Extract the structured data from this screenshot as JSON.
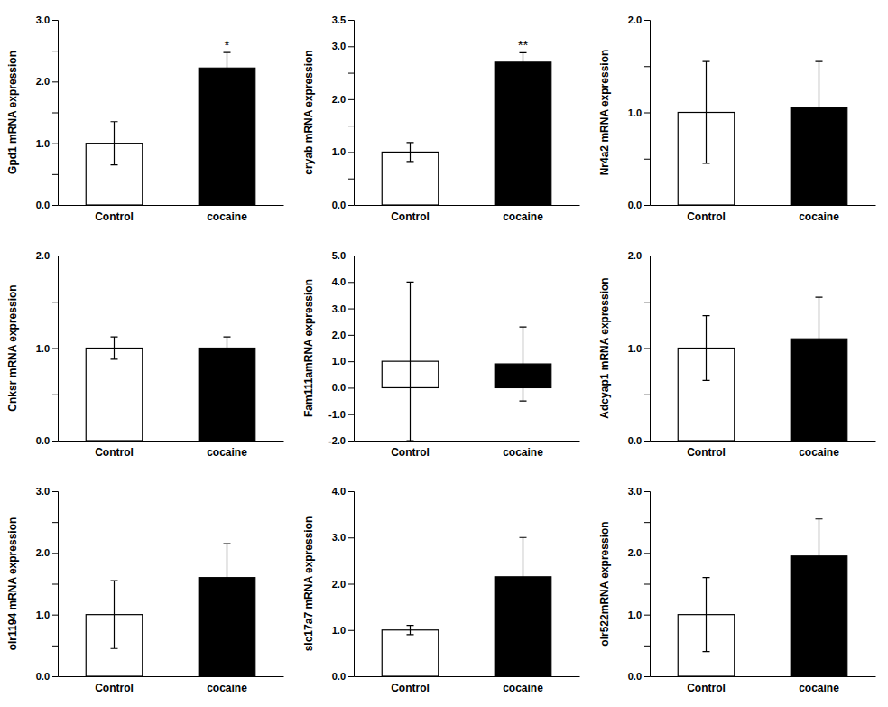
{
  "chart_data": [
    {
      "type": "bar",
      "ylabel": "Gpd1 mRNA expression",
      "categories": [
        "Control",
        "cocaine"
      ],
      "values": [
        1.0,
        2.22
      ],
      "errors": [
        0.35,
        0.25
      ],
      "colors": [
        "white",
        "black"
      ],
      "ylim": [
        0,
        3.0
      ],
      "yticks": [
        {
          "value": 0.0,
          "label": "0.0"
        },
        {
          "value": 0.5,
          "label": null
        },
        {
          "value": 1.0,
          "label": "1.0"
        },
        {
          "value": 1.5,
          "label": null
        },
        {
          "value": 2.0,
          "label": "2.0"
        },
        {
          "value": 2.5,
          "label": null
        },
        {
          "value": 3.0,
          "label": "3.0"
        }
      ],
      "annotations": [
        {
          "text": "*",
          "category": "cocaine"
        }
      ]
    },
    {
      "type": "bar",
      "ylabel": "cryab mRNA expression",
      "categories": [
        "Control",
        "cocaine"
      ],
      "values": [
        1.0,
        2.7
      ],
      "errors": [
        0.18,
        0.18
      ],
      "colors": [
        "white",
        "black"
      ],
      "ylim": [
        0,
        3.5
      ],
      "yticks": [
        {
          "value": 0.0,
          "label": "0.0"
        },
        {
          "value": 0.5,
          "label": null
        },
        {
          "value": 1.0,
          "label": "1.0"
        },
        {
          "value": 1.5,
          "label": null
        },
        {
          "value": 2.0,
          "label": "2.0"
        },
        {
          "value": 2.5,
          "label": null
        },
        {
          "value": 3.0,
          "label": "3.0"
        },
        3.5
      ],
      "annotations": [
        {
          "text": "**",
          "category": "cocaine"
        }
      ]
    },
    {
      "type": "bar",
      "ylabel": "Nr4a2 mRNA expression",
      "categories": [
        "Control",
        "cocaine"
      ],
      "values": [
        1.0,
        1.05
      ],
      "errors": [
        0.55,
        0.5
      ],
      "colors": [
        "white",
        "black"
      ],
      "ylim": [
        0,
        2.0
      ],
      "yticks": [
        {
          "value": 0.0,
          "label": "0.0"
        },
        {
          "value": 0.5,
          "label": null
        },
        {
          "value": 1.0,
          "label": "1.0"
        },
        {
          "value": 1.5,
          "label": null
        },
        {
          "value": 2.0,
          "label": "2.0"
        }
      ]
    },
    {
      "type": "bar",
      "ylabel": "Cnksr mRNA expression",
      "categories": [
        "Control",
        "cocaine"
      ],
      "values": [
        1.0,
        1.0
      ],
      "errors": [
        0.12,
        0.12
      ],
      "colors": [
        "white",
        "black"
      ],
      "ylim": [
        0,
        2.0
      ],
      "yticks": [
        {
          "value": 0.0,
          "label": "0.0"
        },
        {
          "value": 0.5,
          "label": null
        },
        {
          "value": 1.0,
          "label": "1.0"
        },
        {
          "value": 1.5,
          "label": null
        },
        {
          "value": 2.0,
          "label": "2.0"
        }
      ]
    },
    {
      "type": "bar",
      "ylabel": "Fam111amRNA expression",
      "categories": [
        "Control",
        "cocaine"
      ],
      "values": [
        1.0,
        0.9
      ],
      "errors": [
        3.0,
        1.4
      ],
      "colors": [
        "white",
        "black"
      ],
      "ylim": [
        -2.0,
        5.0
      ],
      "yticks": [
        {
          "value": -2.0,
          "label": "-2.0"
        },
        {
          "value": -1.0,
          "label": "-1.0"
        },
        {
          "value": 0.0,
          "label": "0.0"
        },
        {
          "value": 1.0,
          "label": "1.0"
        },
        {
          "value": 2.0,
          "label": "2.0"
        },
        {
          "value": 3.0,
          "label": "3.0"
        },
        {
          "value": 4.0,
          "label": "4.0"
        },
        {
          "value": 5.0,
          "label": "5.0"
        }
      ]
    },
    {
      "type": "bar",
      "ylabel": "Adcyap1 mRNA expression",
      "categories": [
        "Control",
        "cocaine"
      ],
      "values": [
        1.0,
        1.1
      ],
      "errors": [
        0.35,
        0.45
      ],
      "colors": [
        "white",
        "black"
      ],
      "ylim": [
        0,
        2.0
      ],
      "yticks": [
        {
          "value": 0.0,
          "label": "0.0"
        },
        {
          "value": 0.5,
          "label": null
        },
        {
          "value": 1.0,
          "label": "1.0"
        },
        {
          "value": 1.5,
          "label": null
        },
        {
          "value": 2.0,
          "label": "2.0"
        }
      ]
    },
    {
      "type": "bar",
      "ylabel": "olr1194 mRNA expression",
      "categories": [
        "Control",
        "cocaine"
      ],
      "values": [
        1.0,
        1.6
      ],
      "errors": [
        0.55,
        0.55
      ],
      "colors": [
        "white",
        "black"
      ],
      "ylim": [
        0,
        3.0
      ],
      "yticks": [
        {
          "value": 0.0,
          "label": "0.0"
        },
        {
          "value": 0.5,
          "label": null
        },
        {
          "value": 1.0,
          "label": "1.0"
        },
        {
          "value": 1.5,
          "label": null
        },
        {
          "value": 2.0,
          "label": "2.0"
        },
        {
          "value": 2.5,
          "label": null
        },
        {
          "value": 3.0,
          "label": "3.0"
        }
      ]
    },
    {
      "type": "bar",
      "ylabel": "slc17a7 mRNA expression",
      "categories": [
        "Control",
        "cocaine"
      ],
      "values": [
        1.0,
        2.15
      ],
      "errors": [
        0.1,
        0.85
      ],
      "colors": [
        "white",
        "black"
      ],
      "ylim": [
        0,
        4.0
      ],
      "yticks": [
        {
          "value": 0.0,
          "label": "0.0"
        },
        {
          "value": 1.0,
          "label": "1.0"
        },
        {
          "value": 2.0,
          "label": "2.0"
        },
        {
          "value": 3.0,
          "label": "3.0"
        },
        {
          "value": 4.0,
          "label": "4.0"
        }
      ]
    },
    {
      "type": "bar",
      "ylabel": "olr522mRNA expression",
      "categories": [
        "Control",
        "cocaine"
      ],
      "values": [
        1.0,
        1.95
      ],
      "errors": [
        0.6,
        0.6
      ],
      "colors": [
        "white",
        "black"
      ],
      "ylim": [
        0,
        3.0
      ],
      "yticks": [
        {
          "value": 0.0,
          "label": "0.0"
        },
        {
          "value": 0.5,
          "label": null
        },
        {
          "value": 1.0,
          "label": "1.0"
        },
        {
          "value": 1.5,
          "label": null
        },
        {
          "value": 2.0,
          "label": "2.0"
        },
        {
          "value": 2.5,
          "label": null
        },
        {
          "value": 3.0,
          "label": "3.0"
        }
      ]
    }
  ]
}
